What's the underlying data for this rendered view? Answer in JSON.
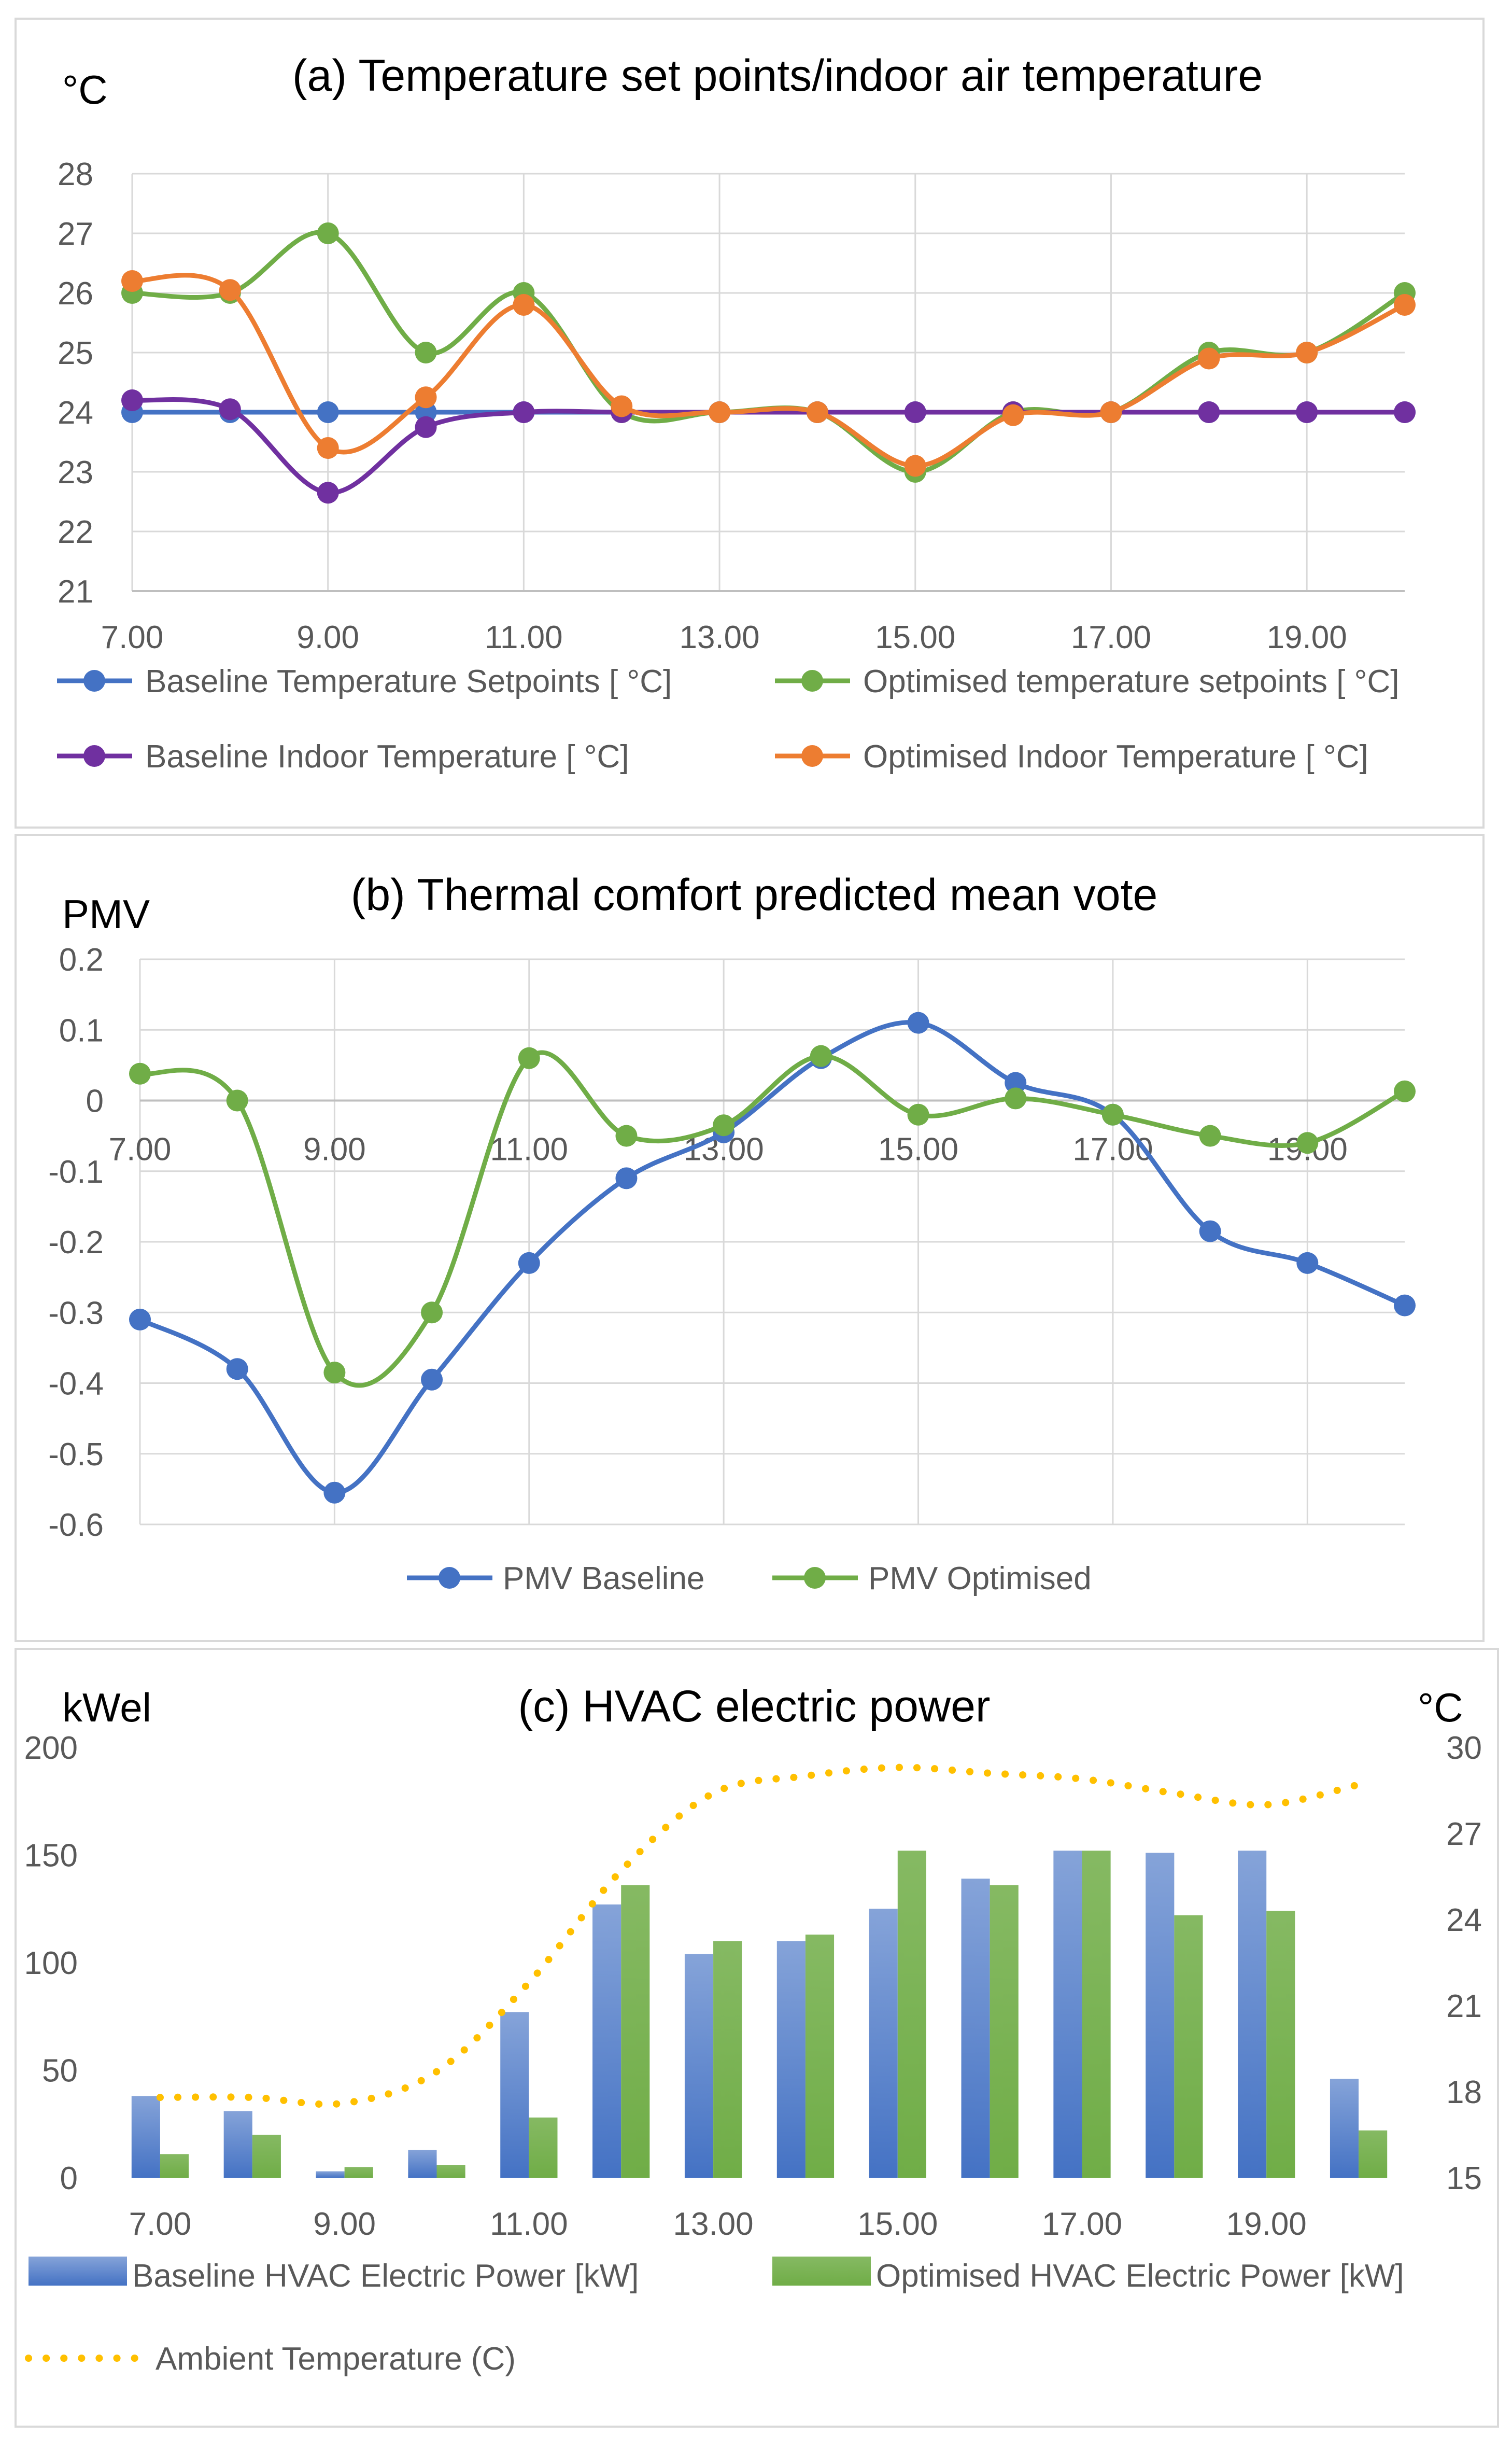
{
  "chart_data": [
    {
      "id": "a",
      "type": "line",
      "title": "(a) Temperature set points/indoor air temperature",
      "ylabel": "°C",
      "xlabel": "",
      "x": [
        7,
        8,
        9,
        10,
        11,
        12,
        13,
        14,
        15,
        16,
        17,
        18,
        19,
        20
      ],
      "xlim": [
        7,
        20
      ],
      "ylim": [
        21,
        28
      ],
      "yticks": [
        21,
        22,
        23,
        24,
        25,
        26,
        27,
        28
      ],
      "xticks": [
        7,
        9,
        11,
        13,
        15,
        17,
        19
      ],
      "xtick_labels": [
        "7.00",
        "9.00",
        "11.00",
        "13.00",
        "15.00",
        "17.00",
        "19.00"
      ],
      "grid": true,
      "legend_position": "bottom",
      "series": [
        {
          "name": "Baseline Temperature Setpoints [ °C]",
          "color": "#4472C4",
          "values": [
            24,
            24,
            24,
            24,
            24,
            24,
            24,
            24,
            24,
            24,
            24,
            24,
            24,
            24
          ]
        },
        {
          "name": "Optimised temperature setpoints [ °C]",
          "color": "#70AD47",
          "values": [
            26,
            26,
            27,
            25,
            26,
            24,
            24,
            24,
            23,
            24,
            24,
            25,
            25,
            26
          ]
        },
        {
          "name": "Baseline Indoor Temperature [ °C]",
          "color": "#7030A0",
          "values": [
            24.2,
            24.05,
            22.65,
            23.75,
            24,
            24,
            24,
            24,
            24,
            24,
            24,
            24,
            24,
            24
          ]
        },
        {
          "name": "Optimised Indoor Temperature [ °C]",
          "color": "#ED7D31",
          "values": [
            26.2,
            26.05,
            23.4,
            24.25,
            25.8,
            24.1,
            24,
            24,
            23.1,
            23.95,
            24,
            24.9,
            25,
            25.8
          ]
        }
      ]
    },
    {
      "id": "b",
      "type": "line",
      "title": "(b) Thermal comfort predicted mean vote",
      "ylabel": "PMV",
      "xlabel": "",
      "x": [
        7,
        8,
        9,
        10,
        11,
        12,
        13,
        14,
        15,
        16,
        17,
        18,
        19,
        20
      ],
      "xlim": [
        7,
        20
      ],
      "ylim": [
        -0.6,
        0.2
      ],
      "yticks": [
        -0.6,
        -0.5,
        -0.4,
        -0.3,
        -0.2,
        -0.1,
        0,
        0.1,
        0.2
      ],
      "ytick_labels": [
        "-0.6",
        "-0.5",
        "-0.4",
        "-0.3",
        "-0.2",
        "-0.1",
        "0",
        "0.1",
        "0.2"
      ],
      "xticks": [
        7,
        9,
        11,
        13,
        15,
        17,
        19
      ],
      "xtick_labels": [
        "7.00",
        "9.00",
        "11.00",
        "13.00",
        "15.00",
        "17.00",
        "19.00"
      ],
      "grid": true,
      "legend_position": "bottom",
      "series": [
        {
          "name": "PMV Baseline",
          "color": "#4472C4",
          "values": [
            -0.31,
            -0.38,
            -0.555,
            -0.395,
            -0.23,
            -0.11,
            -0.045,
            0.06,
            0.11,
            0.025,
            -0.02,
            -0.185,
            -0.23,
            -0.29
          ]
        },
        {
          "name": "PMV Optimised",
          "color": "#70AD47",
          "values": [
            0.038,
            0,
            -0.385,
            -0.3,
            0.06,
            -0.05,
            -0.035,
            0.063,
            -0.02,
            0.003,
            -0.02,
            -0.05,
            -0.06,
            0.013
          ]
        }
      ]
    },
    {
      "id": "c",
      "type": "bar",
      "title": "(c) HVAC electric power",
      "ylabel": "kWel",
      "y2label": "°C",
      "xlabel": "",
      "x": [
        7,
        8,
        9,
        10,
        11,
        12,
        13,
        14,
        15,
        16,
        17,
        18,
        19,
        20
      ],
      "xlim": [
        7,
        20
      ],
      "ylim": [
        0,
        200
      ],
      "yticks": [
        0,
        50,
        100,
        150,
        200
      ],
      "y2lim": [
        15,
        30
      ],
      "y2ticks": [
        15,
        18,
        21,
        24,
        27,
        30
      ],
      "xticks": [
        7,
        9,
        11,
        13,
        15,
        17,
        19
      ],
      "xtick_labels": [
        "7.00",
        "9.00",
        "11.00",
        "13.00",
        "15.00",
        "17.00",
        "19.00"
      ],
      "grid": false,
      "legend_position": "bottom",
      "series": [
        {
          "name": "Baseline HVAC Electric  Power [kW]",
          "color": "#4472C4",
          "axis": "left",
          "values": [
            38,
            31,
            3,
            13,
            77,
            127,
            104,
            110,
            125,
            139,
            152,
            151,
            152,
            46
          ]
        },
        {
          "name": "Optimised HVAC Electric  Power [kW]",
          "color": "#70AD47",
          "axis": "left",
          "values": [
            11,
            20,
            5,
            6,
            28,
            136,
            110,
            113,
            152,
            136,
            152,
            122,
            124,
            22
          ]
        },
        {
          "name": "Ambient Temperature (C)",
          "color": "#FFC000",
          "axis": "right",
          "style": "dotted",
          "values": [
            17.8,
            17.8,
            17.6,
            18.7,
            21.8,
            25.7,
            28.4,
            29.0,
            29.3,
            29.1,
            28.9,
            28.4,
            28.0,
            28.7
          ]
        }
      ]
    }
  ]
}
